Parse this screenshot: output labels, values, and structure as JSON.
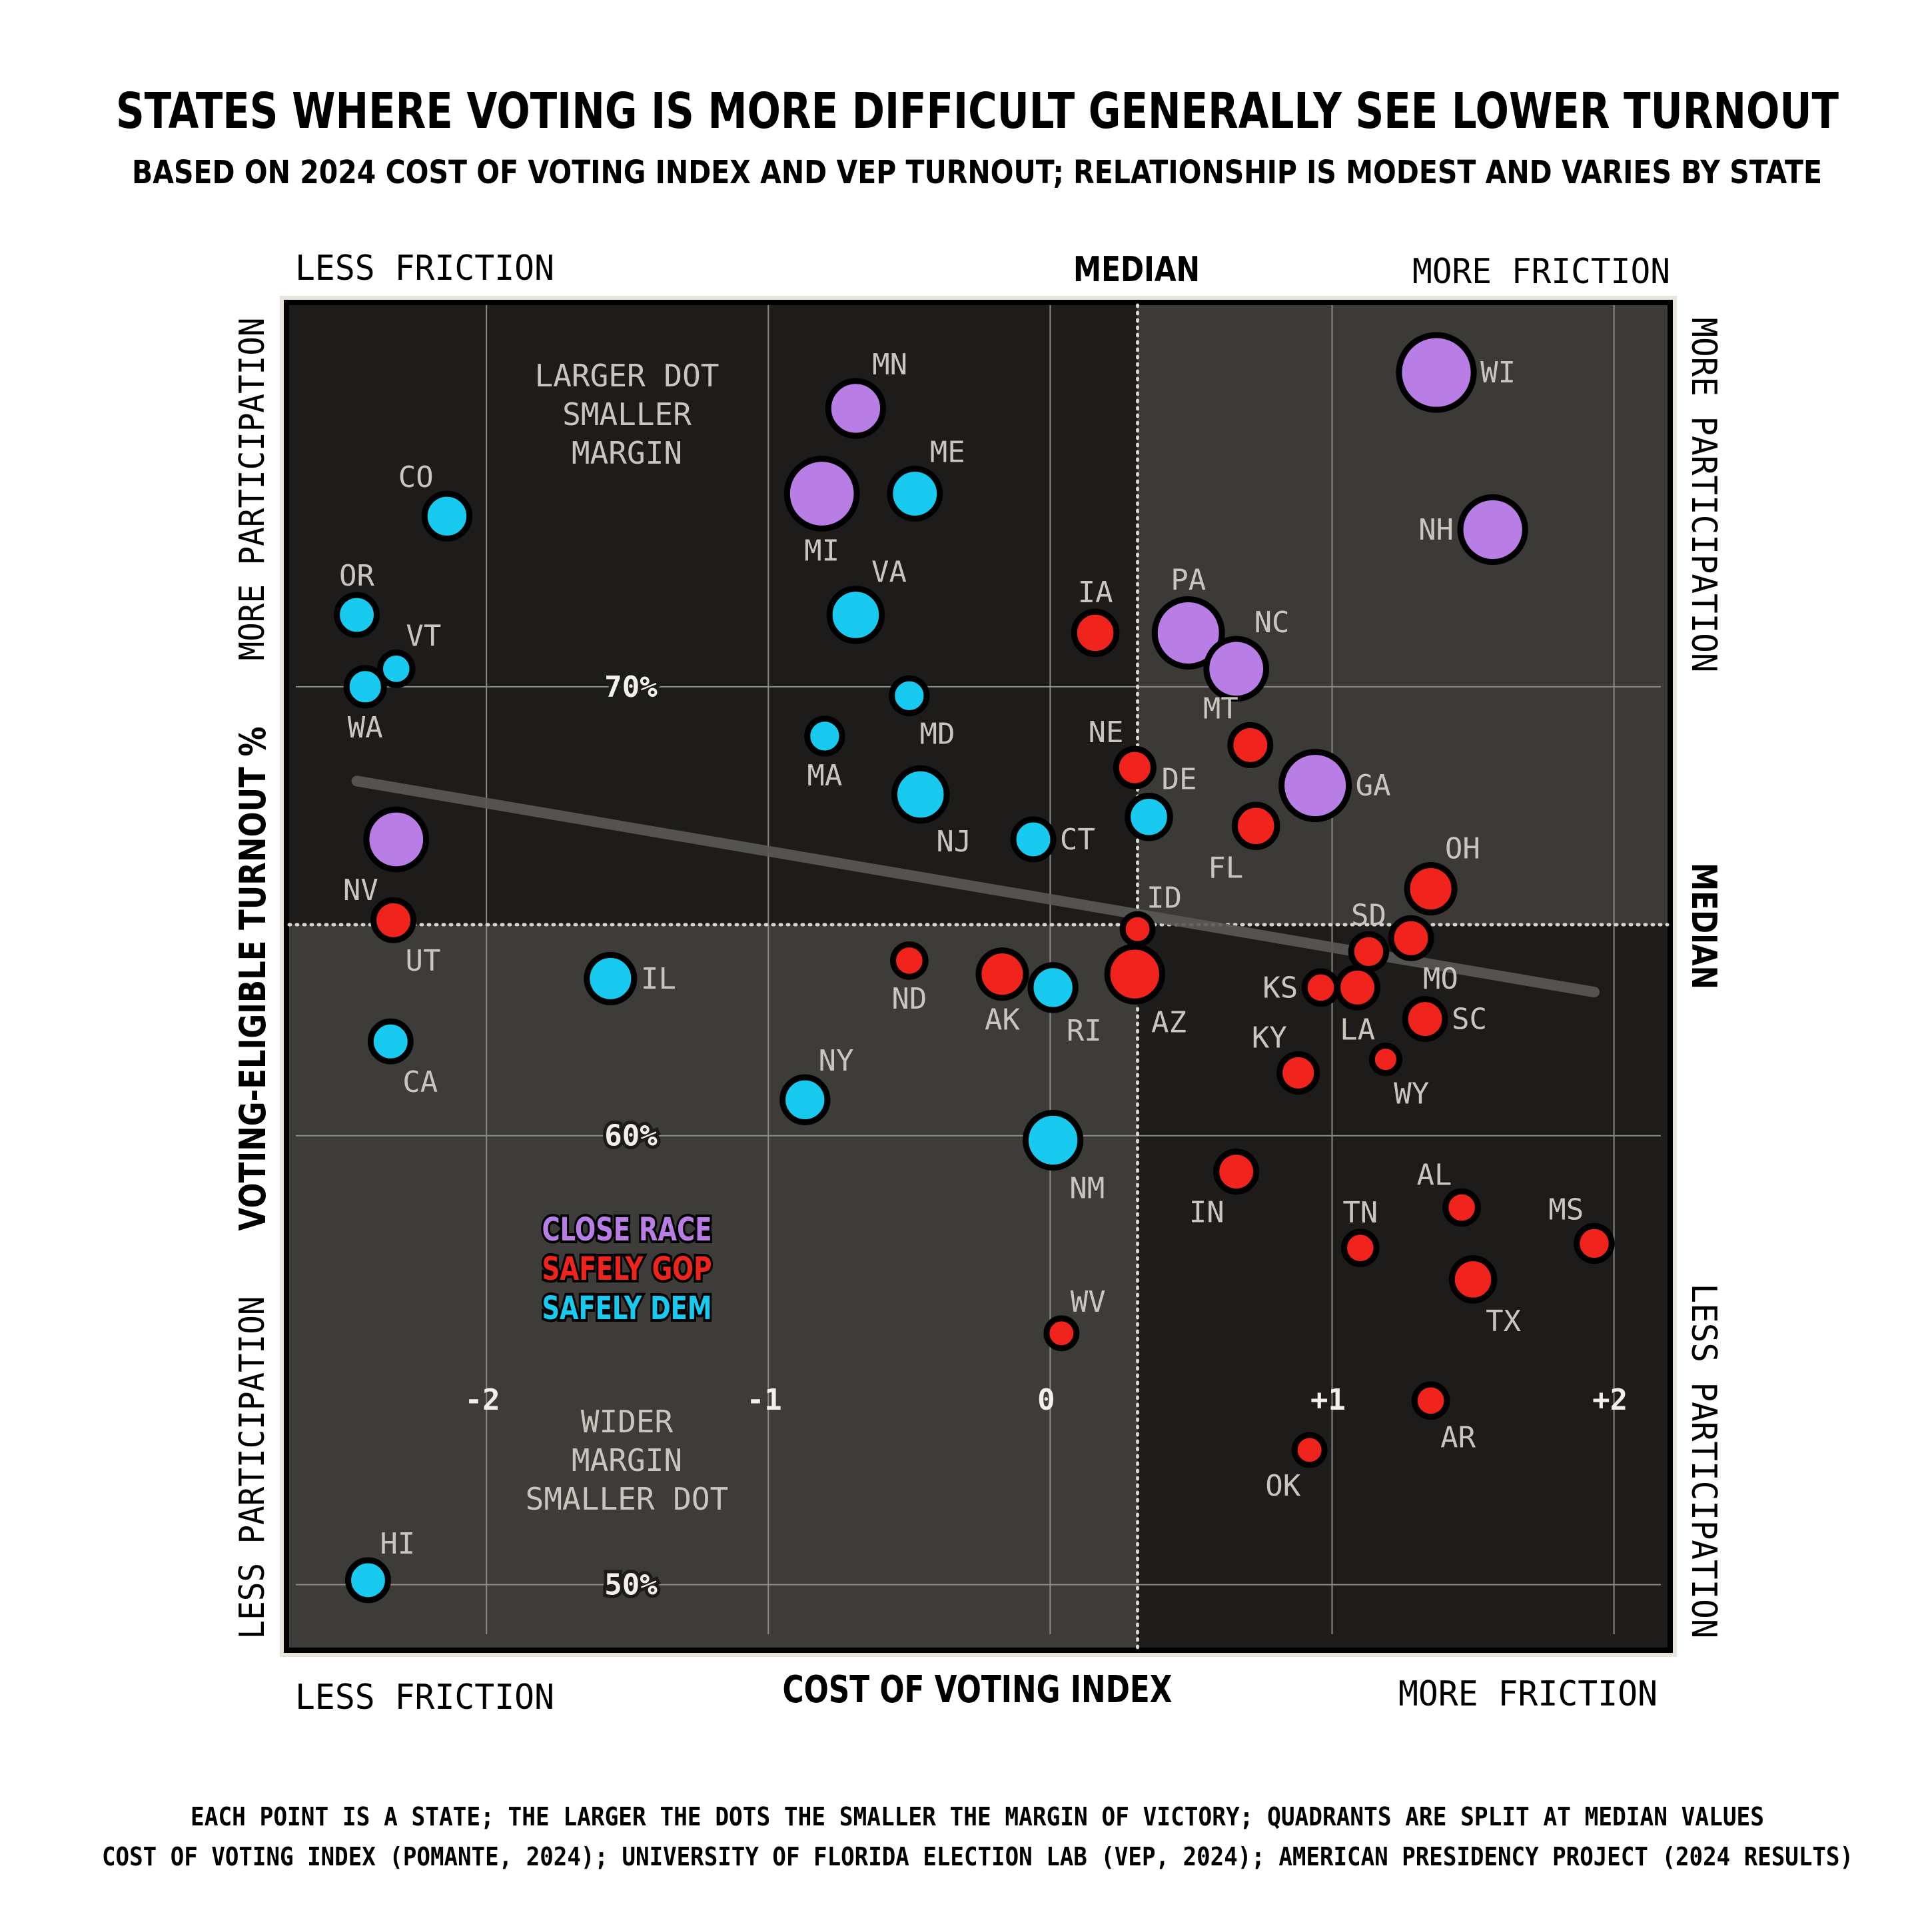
{
  "chart_data": {
    "type": "scatter",
    "title": "STATES WHERE VOTING IS MORE DIFFICULT GENERALLY SEE LOWER TURNOUT",
    "subtitle": "BASED ON 2024 COST OF VOTING INDEX AND VEP TURNOUT; RELATIONSHIP IS MODEST AND VARIES BY STATE",
    "xlabel": "COST OF VOTING INDEX",
    "ylabel": "VOTING-ELIGIBLE TURNOUT %",
    "xlim": [
      -2.7,
      2.19
    ],
    "ylim": [
      48.6,
      78.5
    ],
    "x_ticks": [
      "-2",
      "-1",
      "0",
      "+1",
      "+2"
    ],
    "x_tick_values": [
      -2,
      -1,
      0,
      1,
      2
    ],
    "y_ticks": [
      "50%",
      "60%",
      "70%"
    ],
    "y_tick_values": [
      50,
      60,
      70
    ],
    "grid": true,
    "median_x": 0.31,
    "median_y": 64.7,
    "median_label": "MEDIAN",
    "trend_line": {
      "x": [
        -2.46,
        1.93
      ],
      "y": [
        67.9,
        63.2
      ]
    },
    "axis_notes": {
      "x_less": "LESS FRICTION",
      "x_more": "MORE FRICTION",
      "y_more": "MORE PARTICIPATION",
      "y_less": "LESS PARTICIPATION"
    },
    "annotations": {
      "top": [
        "LARGER DOT",
        "SMALLER",
        "MARGIN"
      ],
      "bottom": [
        "WIDER",
        "MARGIN",
        "SMALLER DOT"
      ]
    },
    "legend": [
      {
        "key": "close",
        "label": "CLOSE RACE",
        "color": "#b97ee6"
      },
      {
        "key": "gop",
        "label": "SAFELY GOP",
        "color": "#f0241c"
      },
      {
        "key": "dem",
        "label": "SAFELY DEM",
        "color": "#18c9f0"
      }
    ],
    "size_meaning": "larger dot = smaller margin of victory",
    "points": [
      {
        "state": "WI",
        "x": 1.37,
        "y": 77.0,
        "group": "close",
        "relative_dot_size": 3.0
      },
      {
        "state": "NH",
        "x": 1.57,
        "y": 73.5,
        "group": "close",
        "relative_dot_size": 2.6
      },
      {
        "state": "MN",
        "x": -0.69,
        "y": 76.2,
        "group": "close",
        "relative_dot_size": 2.2
      },
      {
        "state": "MI",
        "x": -0.81,
        "y": 74.3,
        "group": "close",
        "relative_dot_size": 2.8
      },
      {
        "state": "ME",
        "x": -0.48,
        "y": 74.3,
        "group": "dem",
        "relative_dot_size": 2.0
      },
      {
        "state": "CO",
        "x": -2.14,
        "y": 73.8,
        "group": "dem",
        "relative_dot_size": 1.8
      },
      {
        "state": "OR",
        "x": -2.46,
        "y": 71.6,
        "group": "dem",
        "relative_dot_size": 1.6
      },
      {
        "state": "VT",
        "x": -2.32,
        "y": 70.4,
        "group": "dem",
        "relative_dot_size": 1.3
      },
      {
        "state": "WA",
        "x": -2.43,
        "y": 70.0,
        "group": "dem",
        "relative_dot_size": 1.5
      },
      {
        "state": "VA",
        "x": -0.69,
        "y": 71.6,
        "group": "dem",
        "relative_dot_size": 2.1
      },
      {
        "state": "IA",
        "x": 0.16,
        "y": 71.2,
        "group": "gop",
        "relative_dot_size": 1.7
      },
      {
        "state": "PA",
        "x": 0.49,
        "y": 71.2,
        "group": "close",
        "relative_dot_size": 2.7
      },
      {
        "state": "NC",
        "x": 0.66,
        "y": 70.4,
        "group": "close",
        "relative_dot_size": 2.4
      },
      {
        "state": "MD",
        "x": -0.5,
        "y": 69.8,
        "group": "dem",
        "relative_dot_size": 1.4
      },
      {
        "state": "MA",
        "x": -0.8,
        "y": 68.9,
        "group": "dem",
        "relative_dot_size": 1.4
      },
      {
        "state": "MT",
        "x": 0.71,
        "y": 68.7,
        "group": "gop",
        "relative_dot_size": 1.6
      },
      {
        "state": "NE",
        "x": 0.3,
        "y": 68.2,
        "group": "gop",
        "relative_dot_size": 1.5
      },
      {
        "state": "GA",
        "x": 0.94,
        "y": 67.8,
        "group": "close",
        "relative_dot_size": 2.7
      },
      {
        "state": "NJ",
        "x": -0.46,
        "y": 67.6,
        "group": "dem",
        "relative_dot_size": 2.1
      },
      {
        "state": "DE",
        "x": 0.35,
        "y": 67.1,
        "group": "dem",
        "relative_dot_size": 1.7
      },
      {
        "state": "FL",
        "x": 0.73,
        "y": 66.9,
        "group": "gop",
        "relative_dot_size": 1.7
      },
      {
        "state": "CT",
        "x": -0.06,
        "y": 66.6,
        "group": "dem",
        "relative_dot_size": 1.6
      },
      {
        "state": "NV",
        "x": -2.32,
        "y": 66.6,
        "group": "close",
        "relative_dot_size": 2.4
      },
      {
        "state": "OH",
        "x": 1.35,
        "y": 65.5,
        "group": "gop",
        "relative_dot_size": 1.9
      },
      {
        "state": "UT",
        "x": -2.33,
        "y": 64.8,
        "group": "gop",
        "relative_dot_size": 1.6
      },
      {
        "state": "ID",
        "x": 0.31,
        "y": 64.6,
        "group": "gop",
        "relative_dot_size": 1.2
      },
      {
        "state": "MO",
        "x": 1.28,
        "y": 64.4,
        "group": "gop",
        "relative_dot_size": 1.6
      },
      {
        "state": "SD",
        "x": 1.13,
        "y": 64.1,
        "group": "gop",
        "relative_dot_size": 1.4
      },
      {
        "state": "ND",
        "x": -0.5,
        "y": 63.9,
        "group": "gop",
        "relative_dot_size": 1.3
      },
      {
        "state": "AK",
        "x": -0.17,
        "y": 63.6,
        "group": "gop",
        "relative_dot_size": 1.9
      },
      {
        "state": "AZ",
        "x": 0.3,
        "y": 63.6,
        "group": "gop",
        "relative_dot_size": 2.2
      },
      {
        "state": "IL",
        "x": -1.56,
        "y": 63.5,
        "group": "dem",
        "relative_dot_size": 1.9
      },
      {
        "state": "RI",
        "x": 0.01,
        "y": 63.3,
        "group": "dem",
        "relative_dot_size": 1.8
      },
      {
        "state": "KS",
        "x": 0.96,
        "y": 63.3,
        "group": "gop",
        "relative_dot_size": 1.3
      },
      {
        "state": "LA",
        "x": 1.09,
        "y": 63.3,
        "group": "gop",
        "relative_dot_size": 1.6
      },
      {
        "state": "SC",
        "x": 1.33,
        "y": 62.6,
        "group": "gop",
        "relative_dot_size": 1.6
      },
      {
        "state": "CA",
        "x": -2.34,
        "y": 62.1,
        "group": "dem",
        "relative_dot_size": 1.6
      },
      {
        "state": "KY",
        "x": 0.88,
        "y": 61.4,
        "group": "gop",
        "relative_dot_size": 1.5
      },
      {
        "state": "WY",
        "x": 1.19,
        "y": 61.7,
        "group": "gop",
        "relative_dot_size": 1.1
      },
      {
        "state": "NY",
        "x": -0.87,
        "y": 60.8,
        "group": "dem",
        "relative_dot_size": 1.8
      },
      {
        "state": "NM",
        "x": 0.01,
        "y": 59.9,
        "group": "dem",
        "relative_dot_size": 2.2
      },
      {
        "state": "IN",
        "x": 0.66,
        "y": 59.2,
        "group": "gop",
        "relative_dot_size": 1.6
      },
      {
        "state": "AL",
        "x": 1.46,
        "y": 58.4,
        "group": "gop",
        "relative_dot_size": 1.3
      },
      {
        "state": "MS",
        "x": 1.93,
        "y": 57.6,
        "group": "gop",
        "relative_dot_size": 1.4
      },
      {
        "state": "TN",
        "x": 1.1,
        "y": 57.5,
        "group": "gop",
        "relative_dot_size": 1.3
      },
      {
        "state": "TX",
        "x": 1.5,
        "y": 56.8,
        "group": "gop",
        "relative_dot_size": 1.7
      },
      {
        "state": "WV",
        "x": 0.04,
        "y": 55.6,
        "group": "gop",
        "relative_dot_size": 1.2
      },
      {
        "state": "AR",
        "x": 1.35,
        "y": 54.1,
        "group": "gop",
        "relative_dot_size": 1.3
      },
      {
        "state": "OK",
        "x": 0.92,
        "y": 53.0,
        "group": "gop",
        "relative_dot_size": 1.2
      },
      {
        "state": "HI",
        "x": -2.42,
        "y": 50.1,
        "group": "dem",
        "relative_dot_size": 1.6
      }
    ]
  },
  "footer": {
    "line1": "EACH POINT IS A STATE; THE LARGER THE DOTS THE SMALLER THE MARGIN OF VICTORY; QUADRANTS ARE SPLIT AT MEDIAN VALUES",
    "line2": "COST OF VOTING INDEX (POMANTE, 2024); UNIVERSITY OF FLORIDA ELECTION LAB (VEP, 2024); AMERICAN PRESIDENCY PROJECT (2024 RESULTS)"
  }
}
